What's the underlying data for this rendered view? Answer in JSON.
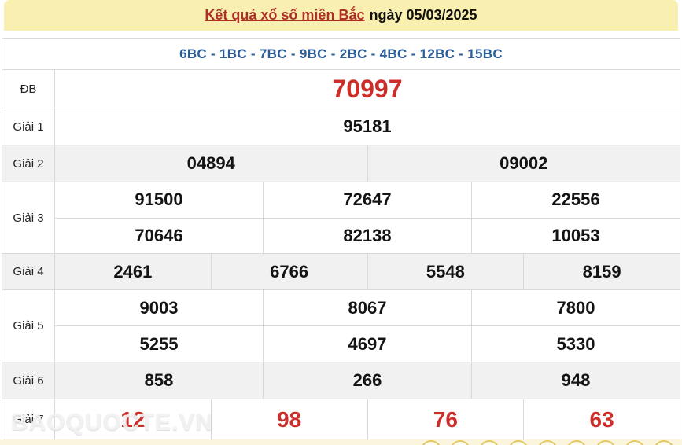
{
  "header": {
    "title": "Kết quả xổ số miền Bắc",
    "date_text": "ngày 05/03/2025"
  },
  "codes_line": "6BC - 1BC - 7BC - 9BC - 2BC - 4BC - 12BC - 15BC",
  "results": {
    "groups": [
      {
        "key": "db",
        "label": "ĐB",
        "style": "special",
        "shade": false,
        "lines": [
          [
            "70997"
          ]
        ]
      },
      {
        "key": "g1",
        "label": "Giải 1",
        "style": "normal",
        "shade": false,
        "lines": [
          [
            "95181"
          ]
        ]
      },
      {
        "key": "g2",
        "label": "Giải 2",
        "style": "normal",
        "shade": true,
        "lines": [
          [
            "04894",
            "09002"
          ]
        ]
      },
      {
        "key": "g3",
        "label": "Giải 3",
        "style": "normal",
        "shade": false,
        "lines": [
          [
            "91500",
            "72647",
            "22556"
          ],
          [
            "70646",
            "82138",
            "10053"
          ]
        ]
      },
      {
        "key": "g4",
        "label": "Giải 4",
        "style": "normal",
        "shade": true,
        "lines": [
          [
            "2461",
            "6766",
            "5548",
            "8159"
          ]
        ]
      },
      {
        "key": "g5",
        "label": "Giải 5",
        "style": "normal",
        "shade": false,
        "lines": [
          [
            "9003",
            "8067",
            "7800"
          ],
          [
            "5255",
            "4697",
            "5330"
          ]
        ]
      },
      {
        "key": "g6",
        "label": "Giải 6",
        "style": "normal",
        "shade": true,
        "lines": [
          [
            "858",
            "266",
            "948"
          ]
        ]
      },
      {
        "key": "g7",
        "label": "Giải 7",
        "style": "red",
        "shade": false,
        "lines": [
          [
            "12",
            "98",
            "76",
            "63"
          ]
        ]
      }
    ]
  },
  "watermark": "BAOQUOCTE.VN",
  "colors": {
    "header_bg": "#F8EFB0",
    "title_red": "#AF2E28",
    "codes_blue": "#2B5E99",
    "number_red": "#CC2F2A",
    "number_black": "#141414",
    "shade_row_bg": "#F1F1F1",
    "border": "#D9D9D9",
    "strip_bg": "#FBF5DE",
    "ball_ring": "#E3C85F"
  }
}
